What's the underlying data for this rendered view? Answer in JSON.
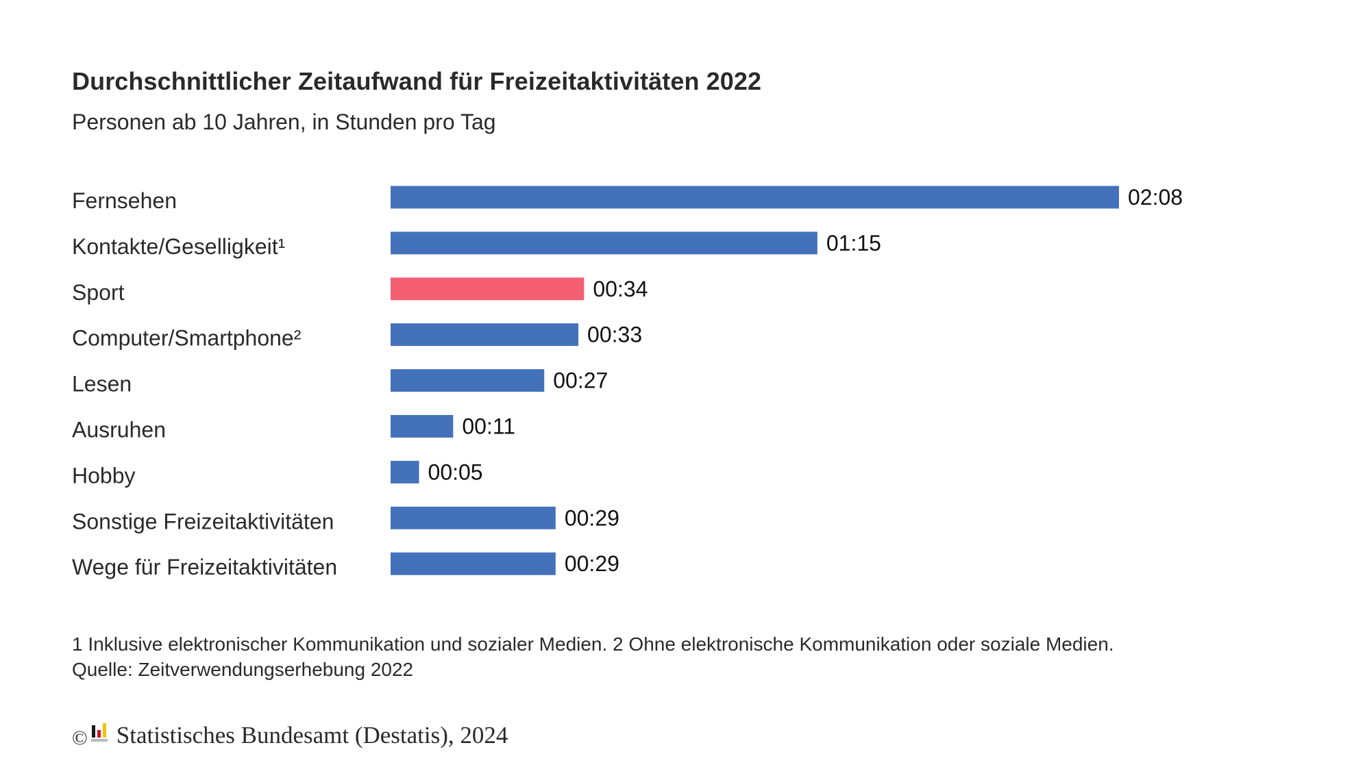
{
  "chart_data": {
    "type": "bar",
    "orientation": "horizontal",
    "title": "Durchschnittlicher Zeitaufwand für Freizeitaktivitäten 2022",
    "subtitle": "Personen ab 10 Jahren, in Stunden pro Tag",
    "xlabel": "",
    "ylabel": "",
    "unit": "minutes",
    "categories": [
      "Fernsehen",
      "Kontakte/Geselligkeit¹",
      "Sport",
      "Computer/Smartphone²",
      "Lesen",
      "Ausruhen",
      "Hobby",
      "Sonstige Freizeitaktivitäten",
      "Wege für Freizeitaktivitäten"
    ],
    "values": [
      128,
      75,
      34,
      33,
      27,
      11,
      5,
      29,
      29
    ],
    "value_labels": [
      "02:08",
      "01:15",
      "00:34",
      "00:33",
      "00:27",
      "00:11",
      "00:05",
      "00:29",
      "00:29"
    ],
    "highlight_index": 2,
    "colors": {
      "default": "#4472ba",
      "highlight": "#f45f74"
    },
    "grid": false,
    "legend": "none",
    "xlim": [
      0,
      128
    ]
  },
  "footnotes": {
    "line1": "1 Inklusive elektronischer Kommunikation und sozialer Medien. 2 Ohne elektronische Kommunikation oder soziale Medien.",
    "line2": "Quelle: Zeitverwendungserhebung 2022"
  },
  "copyright": {
    "symbol": "©",
    "text": "Statistisches Bundesamt (Destatis), 2024",
    "logo_icon": "destatis-logo-icon"
  }
}
